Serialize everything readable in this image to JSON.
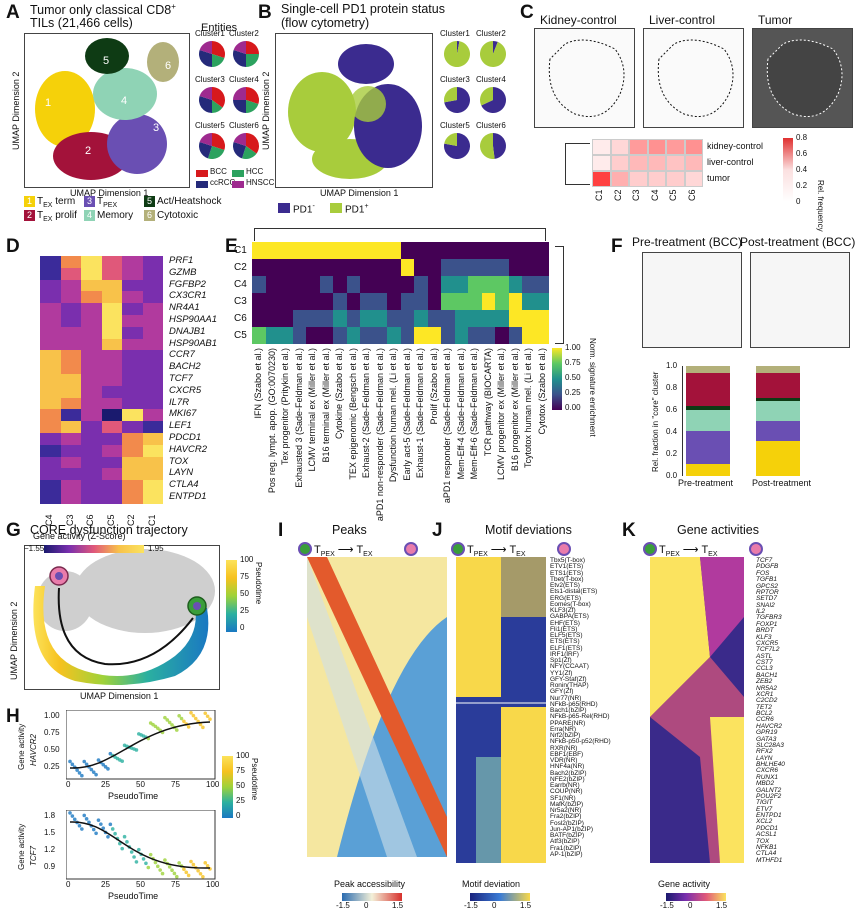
{
  "panels": {
    "A": {
      "letter": "A",
      "title_line1": "Tumor only classical CD8",
      "title_sup": "+",
      "title_line2": "TILs (21,466 cells)",
      "xaxis": "UMAP Dimension 1",
      "yaxis": "UMAP Dimension 2",
      "entities_title": "Entities",
      "clusters": [
        "Cluster1",
        "Cluster2",
        "Cluster3",
        "Cluster4",
        "Cluster5",
        "Cluster6"
      ],
      "entities": [
        {
          "label": "BCC",
          "color": "#d7191c"
        },
        {
          "label": "HCC",
          "color": "#2ca25f"
        },
        {
          "label": "ccRCC",
          "color": "#252a7a"
        },
        {
          "label": "HNSCC",
          "color": "#9e2a8f"
        }
      ],
      "cluster_labels": [
        {
          "num": "1",
          "base": "T",
          "sub": "EX",
          "rest": " term",
          "color": "#f5d10a"
        },
        {
          "num": "2",
          "base": "T",
          "sub": "EX",
          "rest": " prolif",
          "color": "#a3123a"
        },
        {
          "num": "3",
          "base": "T",
          "sub": "PEX",
          "rest": "",
          "color": "#6a4fb3"
        },
        {
          "num": "4",
          "base": "Memory",
          "sub": "",
          "rest": "",
          "color": "#8fd3b5"
        },
        {
          "num": "5",
          "base": "Act/Heatshock",
          "sub": "",
          "rest": "",
          "color": "#0e3b14"
        },
        {
          "num": "6",
          "base": "Cytotoxic",
          "sub": "",
          "rest": "",
          "color": "#b3b07a"
        }
      ]
    },
    "B": {
      "letter": "B",
      "title_line1": "Single-cell PD1 protein status",
      "title_line2": "(flow cytometry)",
      "xaxis": "UMAP Dimension 1",
      "yaxis": "UMAP Dimension 2",
      "clusters": [
        "Cluster1",
        "Cluster2",
        "Cluster3",
        "Cluster4",
        "Cluster5",
        "Cluster6"
      ],
      "legend": [
        {
          "label": "PD1",
          "sup": "-",
          "color": "#3b2b8f"
        },
        {
          "label": "PD1",
          "sup": "+",
          "color": "#a8cc3c"
        }
      ]
    },
    "C": {
      "letter": "C",
      "titles": [
        "Kidney-control",
        "Liver-control",
        "Tumor"
      ],
      "rows": [
        "kidney-control",
        "liver-control",
        "tumor"
      ],
      "cols": [
        "C1",
        "C2",
        "C3",
        "C4",
        "C5",
        "C6"
      ],
      "colorbar_title": "Rel. frequency",
      "colorbar_ticks": [
        "0.8",
        "0.6",
        "0.4",
        "0.2",
        "0"
      ]
    },
    "D": {
      "letter": "D",
      "genes": [
        "PRF1",
        "GZMB",
        "FGFBP2",
        "CX3CR1",
        "NR4A1",
        "HSP90AA1",
        "DNAJB1",
        "HSP90AB1",
        "CCR7",
        "BACH2",
        "TCF7",
        "CXCR5",
        "IL7R",
        "MKI67",
        "LEF1",
        "PDCD1",
        "HAVCR2",
        "TOX",
        "LAYN",
        "CTLA4",
        "ENTPD1"
      ],
      "cols": [
        "C4",
        "C3",
        "C6",
        "C5",
        "C2",
        "C1"
      ],
      "colorbar_title": "Gene activity (Z-Score)",
      "cb_min": "−1.55",
      "cb_max": "1.95"
    },
    "E": {
      "letter": "E",
      "rows": [
        "C1",
        "C2",
        "C4",
        "C3",
        "C6",
        "C5"
      ],
      "signatures": [
        "IFN (Szabo et al.)",
        "Pos reg. lympt. apop. (GO:0070230)",
        "Tex progenitor (Pritykin et al.)",
        "Exhausted 3 (Sade-Feldman et al.)",
        "LCMV terminal ex (Miller et al.)",
        "B16 terminal ex (Miller et al.)",
        "Cytokine (Szabo et al.)",
        "TEX epigenomic (Bengsch et al.)",
        "Exhaust-2 (Sade-Feldman et al.)",
        "aPD1 non-responder (Sade-Feldman et al.)",
        "Dysfunction human mel. (Li et al.)",
        "Early act-5 (Sade-Feldman et al.)",
        "Exhaust-1 (Sade-Feldman et al.)",
        "Prolif (Szabo et al.)",
        "aPD1 responder (Sade-Feldman et al.)",
        "Mem-Eff-4 (Sade-Feldman et al.)",
        "Mem-Eff-6 (Sade-Feldman et al.)",
        "TCR pathway (BIOCARTA)",
        "LCMV progenitor ex (Miller et al.)",
        "B16 progenitor ex (Miller et al.)",
        "Tcytotox human mel. (Li et al.)",
        "Cytotox (Szabo et al.)"
      ],
      "colorbar_title": "Norm. signature enrichment",
      "colorbar_ticks": [
        "1.00",
        "0.75",
        "0.50",
        "0.25",
        "0.00"
      ]
    },
    "F": {
      "letter": "F",
      "titles": [
        "Pre-treatment (BCC)",
        "Post-treatment (BCC)"
      ],
      "ylabel": "Rel. fraction in \"core\" cluster",
      "yticks": [
        "1.0",
        "0.8",
        "0.6",
        "0.4",
        "0.2",
        "0.0"
      ],
      "categories": [
        "Pre-treatment",
        "Post-treatment"
      ]
    },
    "G": {
      "letter": "G",
      "title": "CORE dysfunction trajectory",
      "xaxis": "UMAP Dimension 1",
      "yaxis": "UMAP Dimension 2",
      "cb_title": "Pseudotime",
      "cb_ticks": [
        "100",
        "75",
        "50",
        "25",
        "0"
      ]
    },
    "H": {
      "letter": "H",
      "plots": [
        {
          "ylabel1": "Gene activity",
          "ylabel2": "HAVCR2",
          "yticks": [
            "1.00",
            "0.75",
            "0.50",
            "0.25"
          ],
          "xlabel": "PseudoTime",
          "xticks": [
            "0",
            "25",
            "50",
            "75",
            "100"
          ]
        },
        {
          "ylabel1": "Gene activity",
          "ylabel2": "TCF7",
          "yticks": [
            "1.8",
            "1.5",
            "1.2",
            "0.9"
          ],
          "xlabel": "PseudoTime",
          "xticks": [
            "0",
            "25",
            "50",
            "75",
            "100"
          ]
        }
      ],
      "cb_title": "Pseudotime",
      "cb_ticks": [
        "100",
        "75",
        "50",
        "25",
        "0"
      ]
    },
    "I": {
      "letter": "I",
      "title": "Peaks",
      "from": "T",
      "from_sub": "PEX",
      "to": "T",
      "to_sub": "EX",
      "cb_title": "Peak accessibility",
      "cb_ticks": [
        "-1.5",
        "0",
        "1.5"
      ]
    },
    "J": {
      "letter": "J",
      "title": "Motif deviations",
      "from": "T",
      "from_sub": "PEX",
      "to": "T",
      "to_sub": "EX",
      "motifs": [
        "Tbx5(T-box)",
        "ETV1(ETS)",
        "ETS1(ETS)",
        "Tbet(T-box)",
        "Etv2(ETS)",
        "Ets1-distal(ETS)",
        "ERG(ETS)",
        "Eomes(T-box)",
        "KLF3(Zf)",
        "GABPA(ETS)",
        "EHF(ETS)",
        "Fli1(ETS)",
        "ELF5(ETS)",
        "ETS(ETS)",
        "ELF1(ETS)",
        "IRF1(IRF)",
        "Sp1(Zf)",
        "NFY(CCAAT)",
        "YY1(Zf)",
        "GFY-Staf(Zf)",
        "Ronin(THAP)",
        "GFY(Zf)",
        "Nur77(NR)",
        "NFkB-p65(RHD)",
        "Bach1(bZIP)",
        "NFkB-p65-Rel(RHD)",
        "PPARE(NR)",
        "Erra(NR)",
        "Nrf2(bZIP)",
        "NFkB-p50-p52(RHD)",
        "RXR(NR)",
        "EBF1(EBF)",
        "VDR(NR)",
        "HNF4a(NR)",
        "Bach2(bZIP)",
        "NFE2(bZIP)",
        "Earrb(NR)",
        "COUP(NR)",
        "SF1(NR)",
        "MafK(bZIP)",
        "Nr5a2(NR)",
        "Fra2(bZIP)",
        "Fosl2(bZIP)",
        "Jun-AP1(bZIP)",
        "BATF(bZIP)",
        "Atf3(bZIP)",
        "Fra1(bZIP)",
        "AP-1(bZIP)"
      ],
      "cb_title": "Motif deviation",
      "cb_ticks": [
        "-1.5",
        "0",
        "1.5"
      ]
    },
    "K": {
      "letter": "K",
      "title": "Gene activities",
      "from": "T",
      "from_sub": "PEX",
      "to": "T",
      "to_sub": "EX",
      "genes": [
        "TCF7",
        "PDGFB",
        "FOS",
        "TGFB1",
        "GPCS2",
        "RPTOR",
        "SETD7",
        "SNAI2",
        "IL2",
        "TGFBR3",
        "FOXP1",
        "BRDT",
        "KLF3",
        "CXCR5",
        "TCF7L2",
        "ASTL",
        "CST7",
        "CCL3",
        "BACH1",
        "ZEB2",
        "NR5A2",
        "XCR1",
        "C2CD2",
        "TET2",
        "BCL2",
        "CCR6",
        "HAVCR2",
        "GPR19",
        "GATA3",
        "SLC28A3",
        "RFX2",
        "LAYN",
        "BHLHE40",
        "CXCR6",
        "RUNX1",
        "MBD2",
        "GALNT2",
        "POU2F2",
        "TIGIT",
        "ETV7",
        "ENTPD1",
        "XCL2",
        "PDCD1",
        "ACSL1",
        "TOX",
        "NFKB1",
        "CTLA4",
        "MTHFD1"
      ],
      "cb_title": "Gene activity",
      "cb_ticks": [
        "-1.5",
        "0",
        "1.5"
      ]
    }
  }
}
